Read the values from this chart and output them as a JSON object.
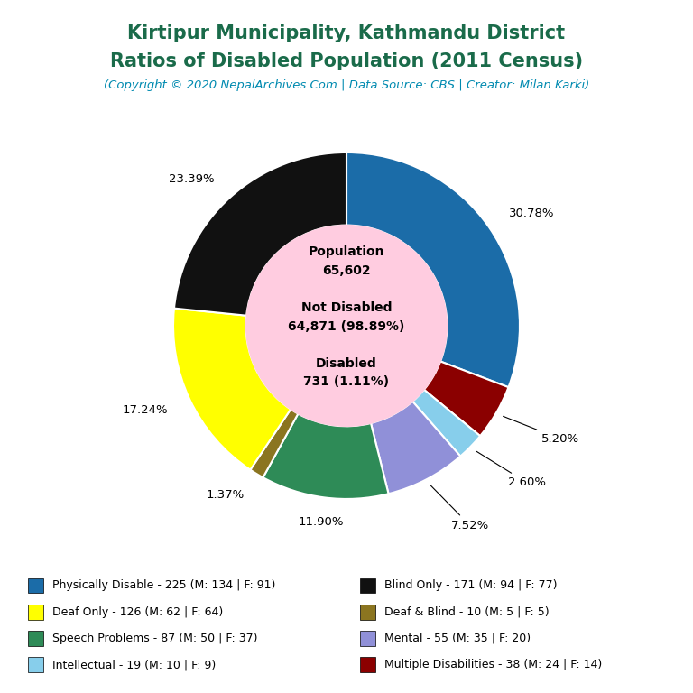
{
  "title_line1": "Kirtipur Municipality, Kathmandu District",
  "title_line2": "Ratios of Disabled Population (2011 Census)",
  "subtitle": "(Copyright © 2020 NepalArchives.Com | Data Source: CBS | Creator: Milan Karki)",
  "title_color": "#1a6b4a",
  "subtitle_color": "#008ab0",
  "center_bg": "#ffcce0",
  "slices": [
    {
      "label": "Physically Disable - 225 (M: 134 | F: 91)",
      "value": 225,
      "pct": "30.78%",
      "color": "#1b6ca8"
    },
    {
      "label": "Multiple Disabilities - 38 (M: 24 | F: 14)",
      "value": 38,
      "pct": "5.20%",
      "color": "#8b0000"
    },
    {
      "label": "Intellectual - 19 (M: 10 | F: 9)",
      "value": 19,
      "pct": "2.60%",
      "color": "#87ceeb"
    },
    {
      "label": "Mental - 55 (M: 35 | F: 20)",
      "value": 55,
      "pct": "7.52%",
      "color": "#9090d8"
    },
    {
      "label": "Speech Problems - 87 (M: 50 | F: 37)",
      "value": 87,
      "pct": "11.90%",
      "color": "#2e8b57"
    },
    {
      "label": "Deaf & Blind - 10 (M: 5 | F: 5)",
      "value": 10,
      "pct": "1.37%",
      "color": "#8b7520"
    },
    {
      "label": "Deaf Only - 126 (M: 62 | F: 64)",
      "value": 126,
      "pct": "17.24%",
      "color": "#ffff00"
    },
    {
      "label": "Blind Only - 171 (M: 94 | F: 77)",
      "value": 171,
      "pct": "23.39%",
      "color": "#111111"
    }
  ],
  "small_slice_indices": [
    1,
    2,
    3
  ],
  "legend_col1": [
    {
      "label": "Physically Disable - 225 (M: 134 | F: 91)",
      "color": "#1b6ca8"
    },
    {
      "label": "Deaf Only - 126 (M: 62 | F: 64)",
      "color": "#ffff00"
    },
    {
      "label": "Speech Problems - 87 (M: 50 | F: 37)",
      "color": "#2e8b57"
    },
    {
      "label": "Intellectual - 19 (M: 10 | F: 9)",
      "color": "#87ceeb"
    }
  ],
  "legend_col2": [
    {
      "label": "Blind Only - 171 (M: 94 | F: 77)",
      "color": "#111111"
    },
    {
      "label": "Deaf & Blind - 10 (M: 5 | F: 5)",
      "color": "#8b7520"
    },
    {
      "label": "Mental - 55 (M: 35 | F: 20)",
      "color": "#9090d8"
    },
    {
      "label": "Multiple Disabilities - 38 (M: 24 | F: 14)",
      "color": "#8b0000"
    }
  ]
}
